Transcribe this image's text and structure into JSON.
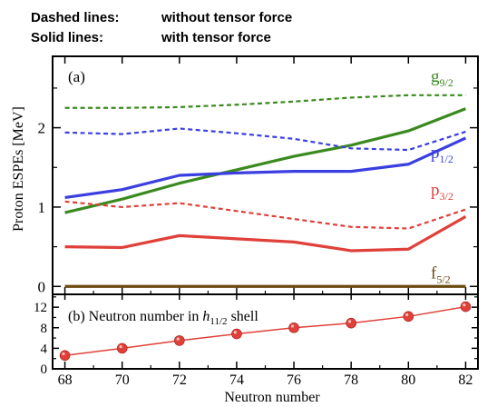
{
  "legend_note": {
    "dashed_key": "Dashed lines:",
    "dashed_text": "without tensor force",
    "solid_key": "Solid lines:",
    "solid_text": "with tensor force"
  },
  "colors": {
    "green": "#3a8a1f",
    "blue": "#3b3fe0",
    "red": "#e0403a",
    "brown": "#6b4a10",
    "marker": "#e04038"
  },
  "chart_data": [
    {
      "type": "line",
      "panel_label": "(a)",
      "ylabel": "Proton ESPEs [MeV]",
      "x": [
        68,
        70,
        72,
        74,
        76,
        78,
        80,
        82
      ],
      "ylim": [
        -0.1,
        2.9
      ],
      "yticks": [
        0,
        1,
        2
      ],
      "series": [
        {
          "name": "g9/2",
          "label_main": "g",
          "label_sub": "9/2",
          "color": "green",
          "style": "dashed",
          "values": [
            2.25,
            2.25,
            2.26,
            2.29,
            2.33,
            2.38,
            2.41,
            2.41
          ]
        },
        {
          "name": "g9/2",
          "label_main": "g",
          "label_sub": "9/2",
          "color": "green",
          "style": "solid",
          "values": [
            0.93,
            1.1,
            1.3,
            1.47,
            1.64,
            1.78,
            1.96,
            2.24
          ]
        },
        {
          "name": "p1/2",
          "label_main": "p",
          "label_sub": "1/2",
          "color": "blue",
          "style": "dashed",
          "values": [
            1.94,
            1.92,
            1.99,
            1.93,
            1.86,
            1.74,
            1.72,
            1.95
          ]
        },
        {
          "name": "p1/2",
          "label_main": "p",
          "label_sub": "1/2",
          "color": "blue",
          "style": "solid",
          "values": [
            1.12,
            1.22,
            1.4,
            1.43,
            1.45,
            1.45,
            1.54,
            1.87
          ]
        },
        {
          "name": "p3/2",
          "label_main": "p",
          "label_sub": "3/2",
          "color": "red",
          "style": "dashed",
          "values": [
            1.07,
            1.0,
            1.05,
            0.95,
            0.85,
            0.75,
            0.73,
            0.97
          ]
        },
        {
          "name": "p3/2",
          "label_main": "p",
          "label_sub": "3/2",
          "color": "red",
          "style": "solid",
          "values": [
            0.5,
            0.49,
            0.64,
            0.6,
            0.56,
            0.45,
            0.47,
            0.88
          ]
        },
        {
          "name": "f5/2",
          "label_main": "f",
          "label_sub": "5/2",
          "color": "brown",
          "style": "solid",
          "values": [
            0,
            0,
            0,
            0,
            0,
            0,
            0,
            0
          ]
        }
      ]
    },
    {
      "type": "line",
      "panel_label": "(b) Neutron number  in ",
      "panel_label_italic": "h",
      "panel_label_sub": "11/2",
      "panel_label_tail": " shell",
      "xlabel": "Neutron number",
      "x": [
        68,
        70,
        72,
        74,
        76,
        78,
        80,
        82
      ],
      "xticks": [
        68,
        70,
        72,
        74,
        76,
        78,
        80,
        82
      ],
      "ylim": [
        0,
        14.5
      ],
      "yticks": [
        0,
        4,
        8,
        12
      ],
      "minor_yticks": [
        2,
        6,
        10,
        14
      ],
      "series": [
        {
          "color": "marker",
          "marker": "circle",
          "values": [
            2.6,
            4.0,
            5.5,
            6.8,
            8.0,
            8.9,
            10.2,
            12.1
          ]
        }
      ]
    }
  ]
}
